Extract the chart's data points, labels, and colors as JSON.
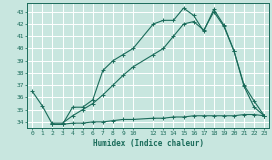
{
  "xlabel": "Humidex (Indice chaleur)",
  "background_color": "#c8e6df",
  "grid_color": "#ffffff",
  "line_color": "#1a6b5a",
  "xlim": [
    -0.5,
    23.5
  ],
  "ylim": [
    33.5,
    43.7
  ],
  "yticks": [
    34,
    35,
    36,
    37,
    38,
    39,
    40,
    41,
    42,
    43
  ],
  "xticks": [
    0,
    1,
    2,
    3,
    4,
    5,
    6,
    7,
    8,
    9,
    10,
    12,
    13,
    14,
    15,
    16,
    17,
    18,
    19,
    20,
    21,
    22,
    23
  ],
  "xtick_labels": [
    "0",
    "1",
    "2",
    "3",
    "4",
    "5",
    "6",
    "7",
    "8",
    "9",
    "10",
    "12",
    "13",
    "14",
    "15",
    "16",
    "17",
    "18",
    "19",
    "20",
    "21",
    "22",
    "23"
  ],
  "series": [
    {
      "x": [
        0,
        1,
        2,
        3,
        4,
        5,
        6,
        7,
        8,
        9,
        10,
        12,
        13,
        14,
        15,
        16,
        17,
        18,
        19,
        20,
        21,
        22,
        23
      ],
      "y": [
        36.5,
        35.3,
        33.8,
        33.8,
        35.2,
        35.2,
        35.8,
        38.2,
        39.0,
        39.5,
        40.0,
        42.0,
        42.3,
        42.3,
        43.3,
        42.7,
        41.4,
        43.2,
        41.9,
        39.8,
        37.0,
        35.7,
        34.5
      ]
    },
    {
      "x": [
        2,
        3,
        4,
        5,
        6,
        7,
        8,
        9,
        10,
        12,
        13,
        14,
        15,
        16,
        17,
        18,
        19,
        20,
        21,
        22,
        23
      ],
      "y": [
        33.9,
        33.9,
        34.5,
        35.0,
        35.5,
        36.2,
        37.0,
        37.8,
        38.5,
        39.5,
        40.0,
        41.0,
        42.0,
        42.2,
        41.5,
        43.0,
        41.8,
        39.8,
        36.9,
        35.2,
        34.5
      ]
    },
    {
      "x": [
        2,
        3,
        4,
        5,
        6,
        7,
        8,
        9,
        10,
        12,
        13,
        14,
        15,
        16,
        17,
        18,
        19,
        20,
        21,
        22,
        23
      ],
      "y": [
        33.8,
        33.8,
        33.9,
        33.9,
        34.0,
        34.0,
        34.1,
        34.2,
        34.2,
        34.3,
        34.3,
        34.4,
        34.4,
        34.5,
        34.5,
        34.5,
        34.5,
        34.5,
        34.6,
        34.6,
        34.5
      ]
    }
  ]
}
